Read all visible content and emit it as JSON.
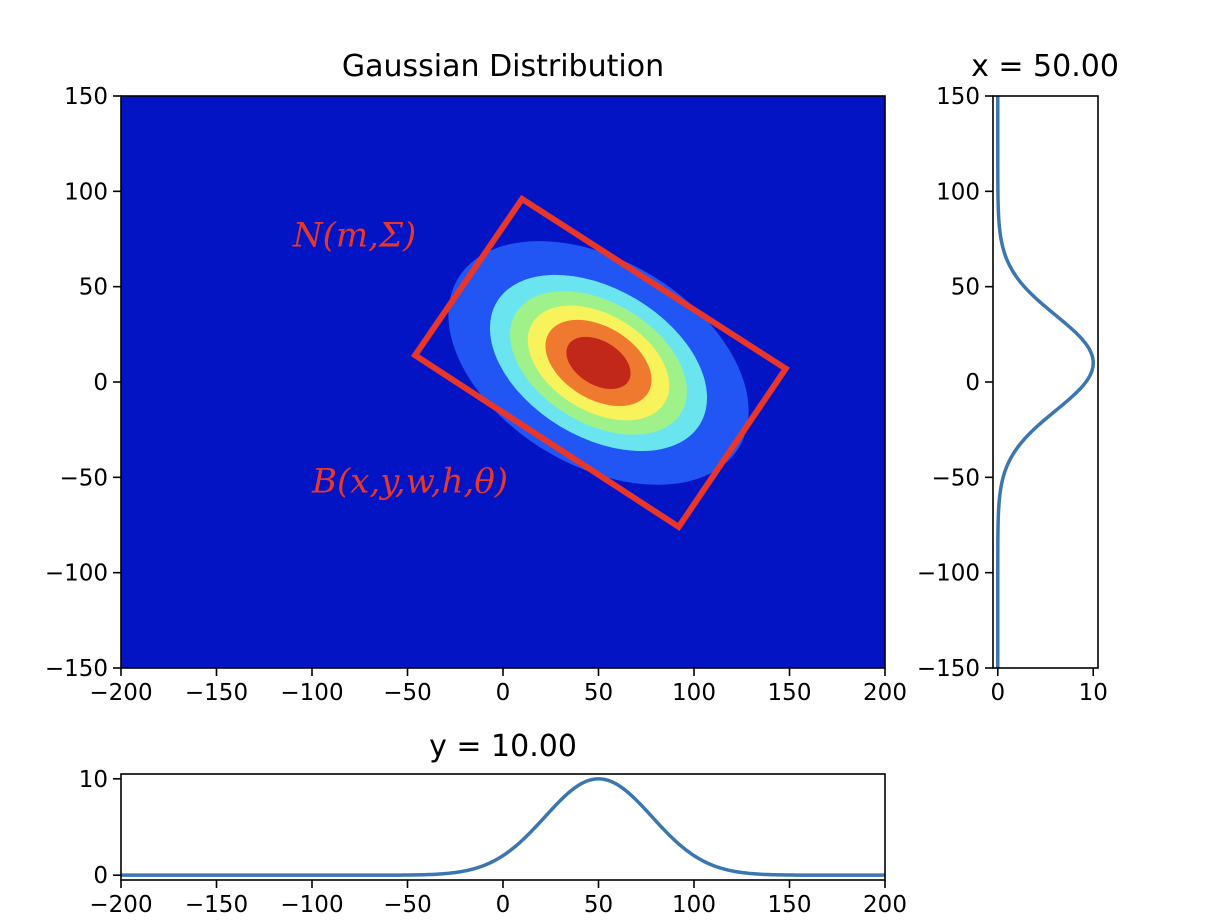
{
  "chart_data": [
    {
      "type": "heatmap",
      "title": "Gaussian Distribution",
      "xlim": [
        -200,
        200
      ],
      "ylim": [
        -150,
        150
      ],
      "x_ticks": [
        -200,
        -150,
        -100,
        -50,
        0,
        50,
        100,
        150,
        200
      ],
      "y_ticks": [
        -150,
        -100,
        -50,
        0,
        50,
        100,
        150
      ],
      "x_tick_labels": [
        "−200",
        "−150",
        "−100",
        "−50",
        "0",
        "50",
        "100",
        "150",
        "200"
      ],
      "y_tick_labels": [
        "−150",
        "−100",
        "−50",
        "0",
        "50",
        "100",
        "150"
      ],
      "colormap": "jet",
      "background_color": "#0314c4",
      "gaussian": {
        "mean": [
          50,
          10
        ],
        "sigma_major": 40,
        "sigma_minor": 25,
        "angle_deg": -31,
        "peak": 10
      },
      "contour_levels": [
        {
          "level": 0.1,
          "color": "#2156f5"
        },
        {
          "level": 0.3,
          "color": "#6ae5ef"
        },
        {
          "level": 0.45,
          "color": "#9ff28a"
        },
        {
          "level": 0.6,
          "color": "#f8f35a"
        },
        {
          "level": 0.75,
          "color": "#ef7a2f"
        },
        {
          "level": 0.9,
          "color": "#c1281a"
        }
      ],
      "box": {
        "corners": [
          [
            10,
            96
          ],
          [
            148,
            7
          ],
          [
            92,
            -76
          ],
          [
            -46,
            14
          ]
        ],
        "color": "#e8372a"
      },
      "annotations": [
        {
          "text": "N(m,Σ)",
          "x": -110,
          "y": 71,
          "color": "#e8372a"
        },
        {
          "text": "B(x,y,w,h,θ)",
          "x": -100,
          "y": -58,
          "color": "#e8372a"
        }
      ]
    },
    {
      "type": "line",
      "title": "x = 50.00",
      "orientation": "vertical",
      "xlim": [
        -0.5,
        10.5
      ],
      "ylim": [
        -150,
        150
      ],
      "x_ticks": [
        0,
        10
      ],
      "x_tick_labels": [
        "0",
        "10"
      ],
      "y_ticks": [
        -150,
        -100,
        -50,
        0,
        50,
        100,
        150
      ],
      "y_tick_labels": [
        "−150",
        "−100",
        "−50",
        "0",
        "50",
        "100",
        "150"
      ],
      "series": [
        {
          "mean": 10,
          "sigma": 25,
          "peak": 10,
          "color": "#3b76b0"
        }
      ]
    },
    {
      "type": "line",
      "title": "y = 10.00",
      "xlim": [
        -200,
        200
      ],
      "ylim": [
        -0.5,
        10.5
      ],
      "x_ticks": [
        -200,
        -150,
        -100,
        -50,
        0,
        50,
        100,
        150,
        200
      ],
      "x_tick_labels": [
        "−200",
        "−150",
        "−100",
        "−50",
        "0",
        "50",
        "100",
        "150",
        "200"
      ],
      "y_ticks": [
        0,
        10
      ],
      "y_tick_labels": [
        "0",
        "10"
      ],
      "series": [
        {
          "mean": 50,
          "sigma": 28,
          "peak": 10,
          "color": "#3b76b0"
        }
      ]
    }
  ]
}
